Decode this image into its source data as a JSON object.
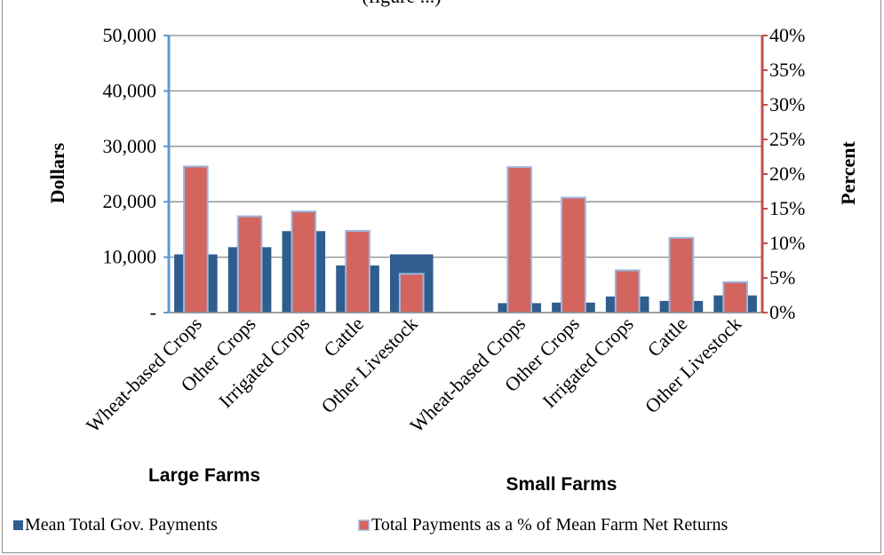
{
  "chart_data": {
    "type": "bar",
    "title_fragment": "(figure ...)",
    "groups": [
      {
        "label": "Large Farms",
        "categories": [
          "Wheat-based Crops",
          "Other Crops",
          "Irrigated Crops",
          "Cattle",
          "Other Livestock"
        ]
      },
      {
        "label": "Small Farms",
        "categories": [
          "Wheat-based Crops",
          "Other Crops",
          "Irrigated Crops",
          "Cattle",
          "Other Livestock"
        ]
      }
    ],
    "series": [
      {
        "name": "Mean Total Gov. Payments",
        "axis": "left",
        "color": "#2e5d8e",
        "values": [
          10500,
          11800,
          14700,
          8500,
          10500,
          1700,
          1800,
          2900,
          2100,
          3100
        ]
      },
      {
        "name": "Total Payments as a % of Mean Farm Net Returns",
        "axis": "right",
        "color": "#d4645e",
        "border": "#9bb8de",
        "values": [
          21.1,
          13.9,
          14.6,
          11.8,
          5.6,
          21.0,
          16.6,
          6.1,
          10.8,
          4.4
        ]
      }
    ],
    "y_left": {
      "label": "Dollars",
      "ylim": [
        0,
        50000
      ],
      "ticks": [
        "-",
        "10,000",
        "20,000",
        "30,000",
        "40,000",
        "50,000"
      ],
      "axis_color": "#5b9bd5"
    },
    "y_right": {
      "label": "Percent",
      "ylim": [
        0,
        40
      ],
      "ticks": [
        "0%",
        "5%",
        "10%",
        "15%",
        "20%",
        "25%",
        "30%",
        "35%",
        "40%"
      ],
      "axis_color": "#c0504d"
    },
    "grid": true,
    "legend_position": "bottom"
  }
}
